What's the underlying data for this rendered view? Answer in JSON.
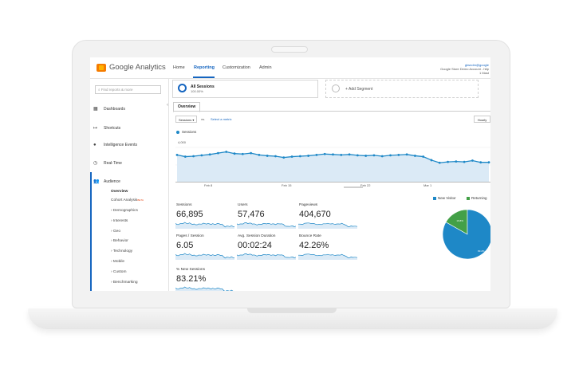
{
  "product": {
    "name": "Google Analytics"
  },
  "nav": [
    "Home",
    "Reporting",
    "Customization",
    "Admin"
  ],
  "account": {
    "email": "gtwndm@google",
    "line2": "Google Store Demo Account - http",
    "line3": "1 Mast"
  },
  "sidebar": {
    "search_placeholder": "Find reports & more",
    "items": [
      "Dashboards",
      "Shortcuts",
      "Intelligence Events",
      "Real-Time",
      "Audience"
    ],
    "audience_sub": [
      "Overview",
      "Cohort Analysis",
      "› Demographics",
      "› Interests",
      "› Geo",
      "› Behavior",
      "› Technology",
      "› Mobile",
      "› Custom",
      "› Benchmarking"
    ],
    "beta_badge": "BETA"
  },
  "segments": {
    "active_name": "All Sessions",
    "active_pct": "100.00%",
    "add_label": "+ Add Segment"
  },
  "tabs": {
    "overview": "Overview"
  },
  "controls": {
    "metric_select": "Sessions",
    "vs": "vs.",
    "select_metric": "Select a metric",
    "interval": "Hourly"
  },
  "chart_data": {
    "type": "line",
    "series": [
      {
        "name": "Sessions",
        "values": [
          3150,
          2950,
          3000,
          3100,
          3200,
          3350,
          3500,
          3300,
          3250,
          3350,
          3150,
          3050,
          3000,
          2850,
          2950,
          3000,
          3050,
          3150,
          3250,
          3200,
          3150,
          3200,
          3100,
          3050,
          3100,
          3000,
          3100,
          3150,
          3200,
          3050,
          2950,
          2550,
          2250,
          2350,
          2400,
          2350,
          2500,
          2300,
          2300
        ]
      }
    ],
    "y_ticks": [
      "4,000",
      "2,000"
    ],
    "ylim": [
      0,
      5000
    ],
    "x_ticks": [
      "Feb 8",
      "Feb 15",
      "Feb 22",
      "Mar 1"
    ],
    "color": "#1e88c7",
    "fill": "#dbeaf6"
  },
  "scorecards": [
    {
      "label": "Sessions",
      "value": "66,895"
    },
    {
      "label": "Users",
      "value": "57,476"
    },
    {
      "label": "Pageviews",
      "value": "404,670"
    },
    {
      "label": "Pages / Session",
      "value": "6.05"
    },
    {
      "label": "Avg. Session Duration",
      "value": "00:02:24"
    },
    {
      "label": "Bounce Rate",
      "value": "42.26%"
    },
    {
      "label": "% New Sessions",
      "value": "83.21%"
    }
  ],
  "pie": {
    "legend": [
      {
        "label": "New Visitor",
        "color": "#1e88c7"
      },
      {
        "label": "Returning",
        "color": "#43a047"
      }
    ],
    "slices": [
      {
        "label": "New Visitor",
        "value": 83.21,
        "text": "83.2%",
        "color": "#1e88c7"
      },
      {
        "label": "Returning Visitor",
        "value": 16.79,
        "text": "16.8%",
        "color": "#43a047"
      }
    ]
  }
}
